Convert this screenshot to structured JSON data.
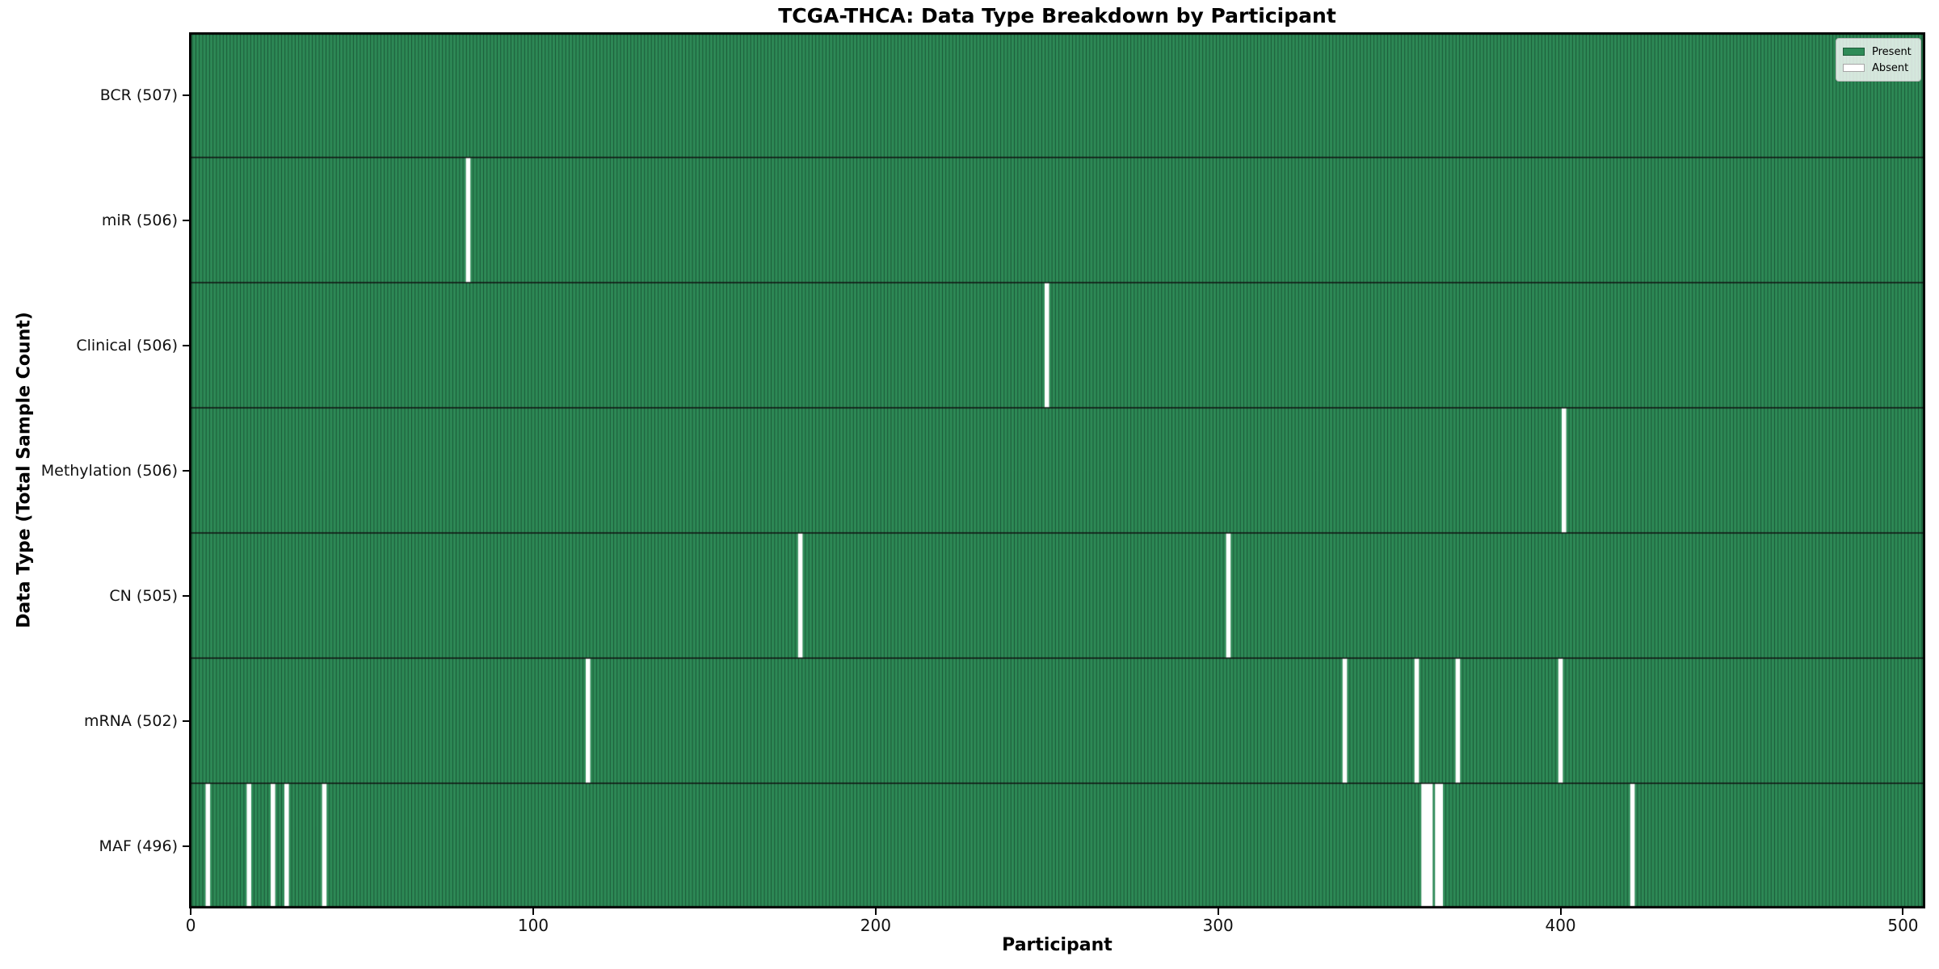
{
  "chart_data": {
    "type": "heatmap",
    "title": "TCGA-THCA: Data Type Breakdown by Participant",
    "xlabel": "Participant",
    "ylabel": "Data Type (Total Sample Count)",
    "x_ticks": [
      0,
      100,
      200,
      300,
      400,
      500
    ],
    "xlim": [
      -0.5,
      506.5
    ],
    "n_participants": 507,
    "grid": "row-separators",
    "legend": {
      "position": "upper right",
      "entries": [
        {
          "label": "Present",
          "color": "#2e8b57"
        },
        {
          "label": "Absent",
          "color": "#ffffff"
        }
      ]
    },
    "colors": {
      "present": "#2e8b57",
      "absent": "#ffffff",
      "bar_edge": "rgba(10,40,25,0.55)",
      "grid": "#111111",
      "frame": "#000000"
    },
    "rows": [
      {
        "data_type": "BCR",
        "label": "BCR (507)",
        "total": 507,
        "absent_participants": []
      },
      {
        "data_type": "miR",
        "label": "miR (506)",
        "total": 506,
        "absent_participants": [
          81
        ]
      },
      {
        "data_type": "Clinical",
        "label": "Clinical (506)",
        "total": 506,
        "absent_participants": [
          250
        ]
      },
      {
        "data_type": "Methylation",
        "label": "Methylation (506)",
        "total": 506,
        "absent_participants": [
          401
        ]
      },
      {
        "data_type": "CN",
        "label": "CN (505)",
        "total": 505,
        "absent_participants": [
          178,
          303
        ]
      },
      {
        "data_type": "mRNA",
        "label": "mRNA (502)",
        "total": 502,
        "absent_participants": [
          116,
          337,
          358,
          370,
          400
        ]
      },
      {
        "data_type": "MAF",
        "label": "MAF (496)",
        "total": 496,
        "absent_participants": [
          5,
          17,
          24,
          28,
          39,
          360,
          361,
          362,
          364,
          365,
          421
        ]
      }
    ]
  }
}
